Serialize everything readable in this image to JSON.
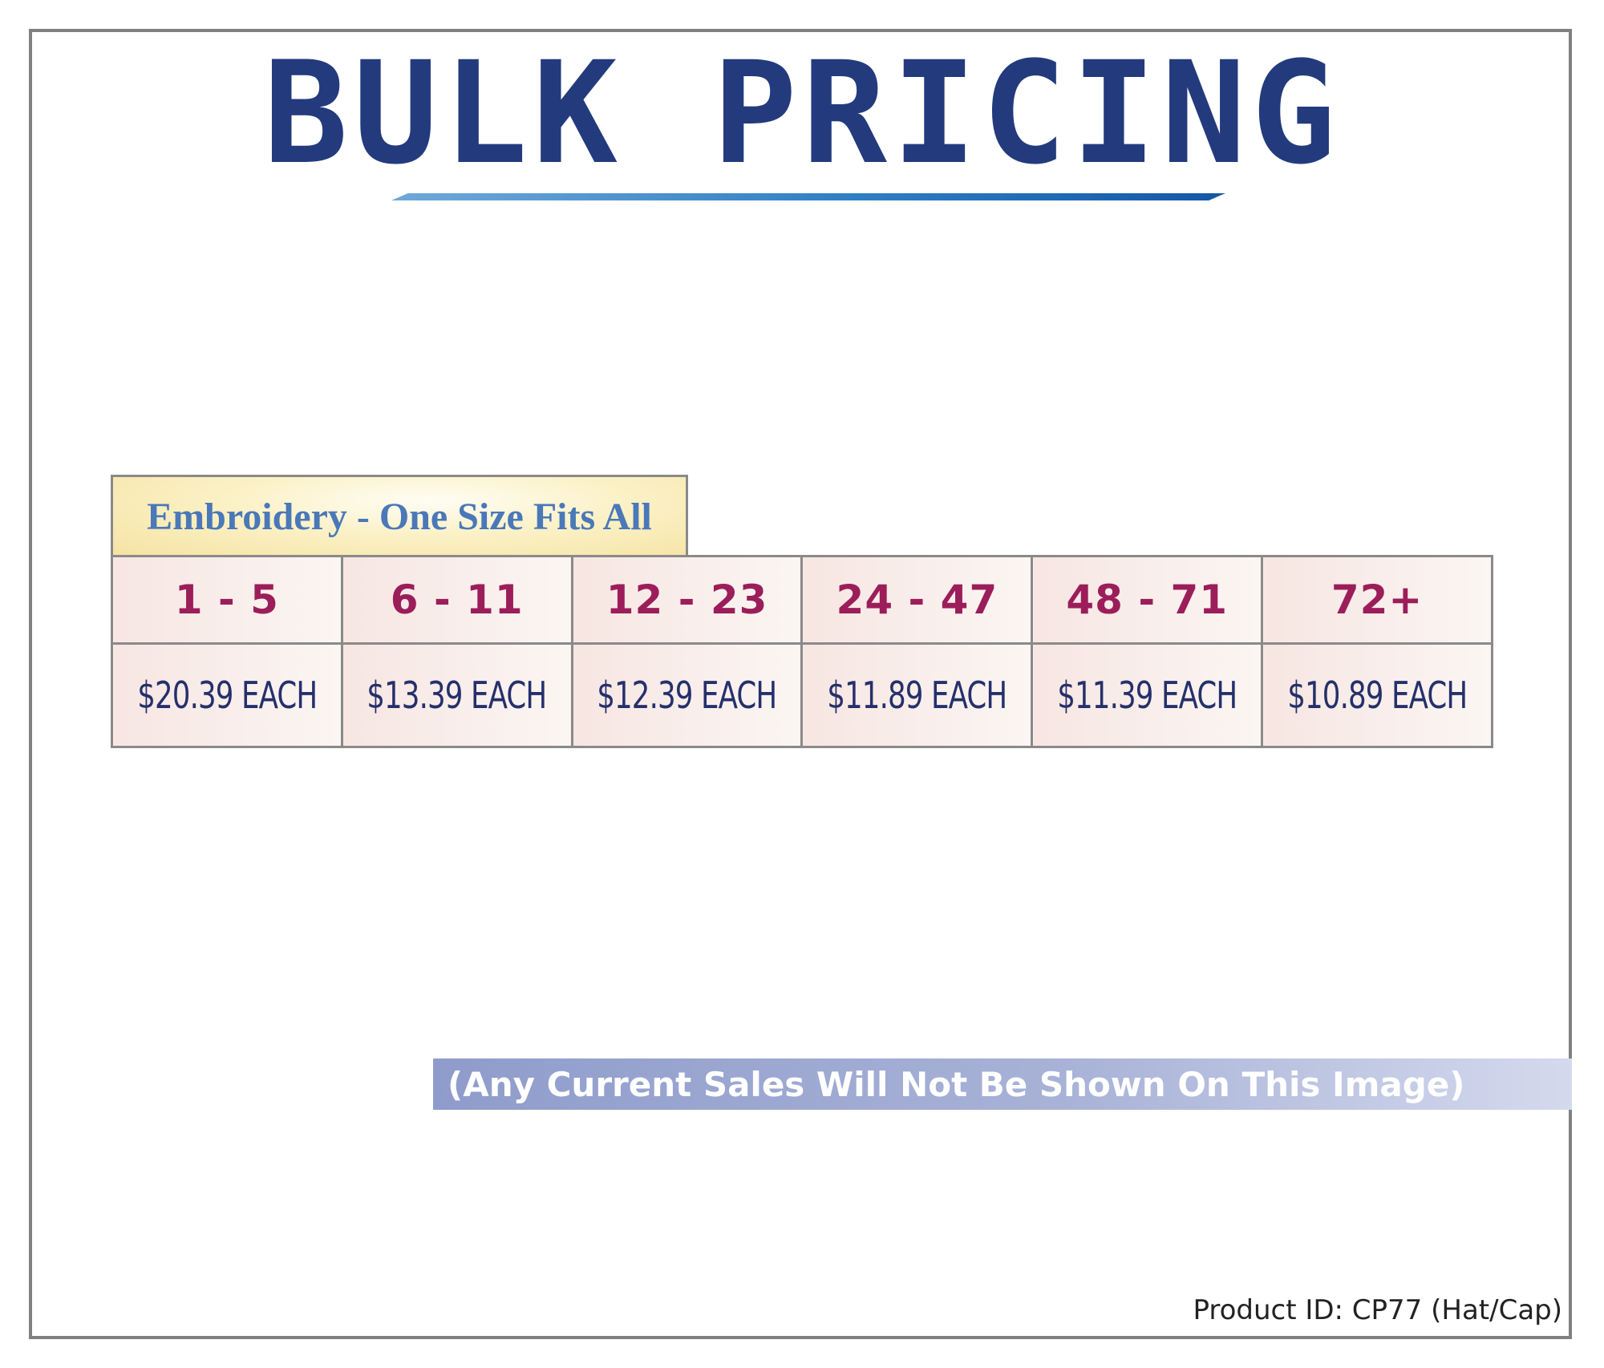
{
  "title": "BULK PRICING",
  "section_label": "Embroidery - One Size Fits All",
  "quantity_tiers": [
    "1 - 5",
    "6 - 11",
    "12 - 23",
    "24 - 47",
    "48 - 71",
    "72+"
  ],
  "prices": [
    "$20.39 EACH",
    "$13.39 EACH",
    "$12.39 EACH",
    "$11.89 EACH",
    "$11.39 EACH",
    "$10.89 EACH"
  ],
  "sales_notice": "(Any Current Sales Will Not Be Shown On This Image)",
  "product_id": "Product ID: CP77 (Hat/Cap)",
  "colors": {
    "title": "#233a7d",
    "tier_text": "#9b1e5a",
    "price_text": "#25306b",
    "label_text": "#4a78b8"
  }
}
